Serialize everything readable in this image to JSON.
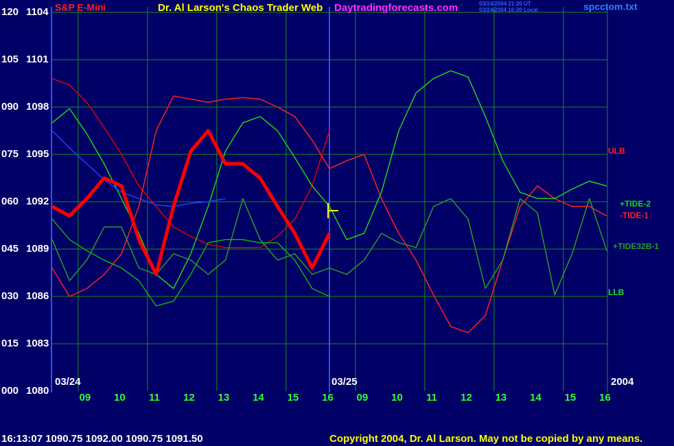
{
  "chart_data": {
    "type": "line",
    "title": "Dr. Al Larson's Chaos Trader Web",
    "instrument": "S&P E-Mini",
    "site": "Daytradingforecasts.com",
    "timestamp_ut": "03/24/2004 21:20 UT",
    "timestamp_local": "03/24/2004 16:20 Local",
    "file": "spcctom.txt",
    "status_line": "16:13:07 1090.75 1092.00 1090.75 1091.50",
    "copyright": "Copyright 2004, Dr. Al Larson. May not be copied by any means.",
    "day_labels": [
      "03/24",
      "03/25"
    ],
    "year_label": "2004",
    "annotations": [
      {
        "text": "ULB",
        "color": "#ff2020"
      },
      {
        "text": "LLB",
        "color": "#20e020"
      }
    ],
    "x": [
      0.25,
      0.75,
      1.25,
      1.75,
      2.25,
      2.75,
      3.25,
      3.75,
      4.25,
      4.75,
      5.25,
      5.75,
      6.25,
      6.75,
      7.25,
      7.75,
      8.25,
      8.75,
      9.25,
      9.75,
      10.25,
      10.75,
      11.25,
      11.75,
      12.25,
      12.75,
      13.25,
      13.75,
      14.25,
      14.75,
      15.25,
      15.75,
      16.25
    ],
    "xlim": [
      0.23,
      16.27
    ],
    "xticks": [
      {
        "value": 1,
        "label": "09"
      },
      {
        "value": 2,
        "label": "10"
      },
      {
        "value": 3,
        "label": "11"
      },
      {
        "value": 4,
        "label": "12"
      },
      {
        "value": 5,
        "label": "13"
      },
      {
        "value": 6,
        "label": "14"
      },
      {
        "value": 7,
        "label": "15"
      },
      {
        "value": 8,
        "label": "16"
      },
      {
        "value": 9,
        "label": "09"
      },
      {
        "value": 10,
        "label": "10"
      },
      {
        "value": 11,
        "label": "11"
      },
      {
        "value": 12,
        "label": "12"
      },
      {
        "value": 13,
        "label": "13"
      },
      {
        "value": 14,
        "label": "14"
      },
      {
        "value": 15,
        "label": "15"
      },
      {
        "value": 16,
        "label": "16"
      }
    ],
    "ylim": [
      1080,
      1104
    ],
    "yticks": [
      1080,
      1083,
      1086,
      1089,
      1092,
      1095,
      1098,
      1101,
      1104
    ],
    "y2lim": [
      0,
      120
    ],
    "y2ticks": [
      {
        "value": 0,
        "label": "000"
      },
      {
        "value": 15,
        "label": "015"
      },
      {
        "value": 30,
        "label": "030"
      },
      {
        "value": 45,
        "label": "045"
      },
      {
        "value": 60,
        "label": "060"
      },
      {
        "value": 75,
        "label": "075"
      },
      {
        "value": 90,
        "label": "090"
      },
      105,
      120
    ],
    "grid": true,
    "series": [
      {
        "color": "#e00000",
        "values": [
          1099.8,
          1099.4,
          1098.3,
          1096.7,
          1095.0,
          1093.0,
          1091.7,
          1090.4,
          1089.8,
          1089.3,
          1089.1,
          1089.1,
          1089.1,
          1089.8,
          1090.9,
          1093.0,
          1096.5,
          null,
          null,
          null,
          null,
          null,
          null,
          null,
          null,
          null,
          null,
          null,
          null,
          null,
          null,
          null,
          null
        ]
      },
      {
        "name": "-TIDE-1",
        "color": "#ff2020",
        "values": [
          1087.8,
          1086.0,
          1086.5,
          1087.4,
          1088.7,
          1091.7,
          1096.5,
          1098.7,
          1098.5,
          1098.3,
          1098.5,
          1098.6,
          1098.5,
          1098.0,
          1097.4,
          1095.9,
          1094.1,
          1094.6,
          1095.0,
          1092.2,
          1090.0,
          1088.3,
          1086.1,
          1084.1,
          1083.7,
          1084.8,
          1088.3,
          1091.7,
          1093.0,
          1092.2,
          1091.7,
          1091.7,
          1091.1
        ]
      },
      {
        "name": "+TIDE-2",
        "color": "#20d020",
        "values": [
          1097.0,
          1097.9,
          1096.3,
          1094.4,
          1092.2,
          1090.0,
          1087.4,
          1086.5,
          1088.7,
          1091.7,
          1095.2,
          1097.0,
          1097.4,
          1096.5,
          1094.8,
          1093.0,
          1091.7,
          1089.6,
          1090.0,
          1092.6,
          1096.5,
          1098.9,
          1099.8,
          1100.3,
          1099.9,
          1097.4,
          1094.6,
          1092.6,
          1092.2,
          1092.2,
          1092.8,
          1093.3,
          1093.0
        ]
      },
      {
        "color": "#10b010",
        "values": [
          1090.9,
          1089.6,
          1088.9,
          1088.3,
          1087.8,
          1087.0,
          1085.4,
          1085.7,
          1087.4,
          1089.4,
          1089.6,
          1089.6,
          1089.4,
          1089.4,
          1088.3,
          1086.5,
          1086.0,
          null,
          null,
          null,
          null,
          null,
          null,
          null,
          null,
          null,
          null,
          null,
          null,
          null,
          null,
          null,
          null
        ]
      },
      {
        "name": "+TIDE32B-1",
        "color": "#2a9a2a",
        "values": [
          1089.6,
          1087.0,
          1088.3,
          1090.4,
          1090.4,
          1087.8,
          1087.4,
          1088.7,
          1088.3,
          1087.4,
          1088.3,
          1092.2,
          1089.6,
          1088.3,
          1088.7,
          1087.4,
          1087.8,
          1087.4,
          1088.3,
          1090.0,
          1089.4,
          1089.1,
          1091.7,
          1092.2,
          1090.9,
          1086.5,
          1088.3,
          1092.2,
          1091.3,
          1086.1,
          1088.7,
          1092.2,
          1088.9
        ]
      },
      {
        "color": "#2040ff",
        "values": [
          1096.5,
          1095.4,
          1094.4,
          1093.4,
          1092.6,
          1092.2,
          1091.8,
          1091.7,
          1091.9,
          1092.0,
          1092.2,
          null,
          null,
          null,
          null,
          null,
          null,
          null,
          null,
          null,
          null,
          null,
          null,
          null,
          null,
          null,
          null,
          null,
          null,
          null,
          null,
          null,
          null
        ]
      },
      {
        "color": "#ff0000",
        "width": 5,
        "values": [
          1091.7,
          1091.1,
          1092.2,
          1093.5,
          1093.0,
          1089.6,
          1087.4,
          1091.7,
          1095.2,
          1096.5,
          1094.4,
          1094.4,
          1093.5,
          1091.7,
          1090.0,
          1087.8,
          1090.0,
          null,
          null,
          null,
          null,
          null,
          null,
          null,
          null,
          null,
          null,
          null,
          null,
          null,
          null,
          null,
          null
        ]
      }
    ]
  }
}
